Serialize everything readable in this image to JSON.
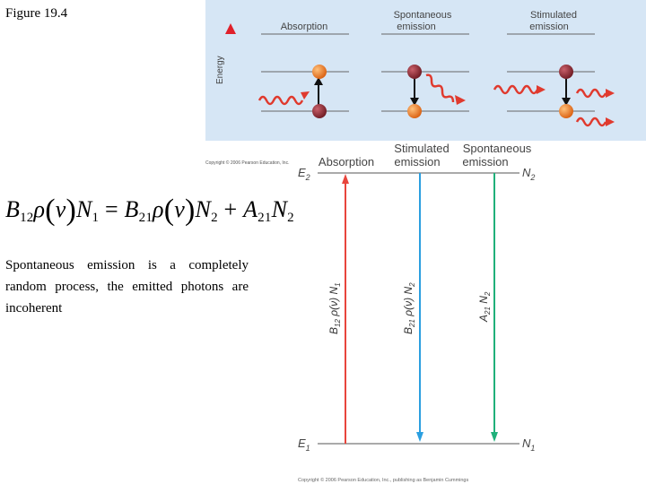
{
  "figure_label": "Figure 19.4",
  "top_panel": {
    "axis_label": "Energy",
    "columns": [
      {
        "title": "Absorption"
      },
      {
        "title_line1": "Spontaneous",
        "title_line2": "emission"
      },
      {
        "title_line1": "Stimulated",
        "title_line2": "emission"
      }
    ],
    "copyright": "Copyright © 2006 Pearson Education, Inc."
  },
  "equation": {
    "lhs": [
      "B",
      "12",
      "ρ",
      "ν",
      "N",
      "1"
    ],
    "rhs1": [
      "B",
      "21",
      "ρ",
      "ν",
      "N",
      "2"
    ],
    "rhs2": [
      "A",
      "21",
      "N",
      "2"
    ]
  },
  "text": "Spontaneous emission is a completely random process, the emitted photons are incoherent",
  "bottom_panel": {
    "headers": {
      "absorption": "Absorption",
      "stimulated_line1": "Stimulated",
      "stimulated_line2": "emission",
      "spontaneous_line1": "Spontaneous",
      "spontaneous_line2": "emission"
    },
    "upper_level": {
      "E": "E",
      "E_sub": "2",
      "N": "N",
      "N_sub": "2"
    },
    "lower_level": {
      "E": "E",
      "E_sub": "1",
      "N": "N",
      "N_sub": "1"
    },
    "arrow_labels": {
      "absorption": {
        "coef": "B",
        "coef_sub": "12",
        "rest": " ρ(ν) N",
        "n_sub": "1"
      },
      "stimulated": {
        "coef": "B",
        "coef_sub": "21",
        "rest": " ρ(ν) N",
        "n_sub": "2"
      },
      "spontaneous": {
        "coef": "A",
        "coef_sub": "21",
        "rest": " N",
        "n_sub": "2"
      }
    },
    "copyright": "Copyright © 2006 Pearson Education, Inc., publishing as Benjamin Cummings"
  },
  "colors": {
    "absorption_arrow": "#e8453c",
    "stimulated_arrow": "#2b9fe0",
    "spontaneous_arrow": "#1fb07a",
    "panel_bg": "#d6e6f5",
    "photon_wave": "#e03a2e",
    "atom_excited": "#8a2a2a",
    "atom_ground": "#e87a2a"
  }
}
